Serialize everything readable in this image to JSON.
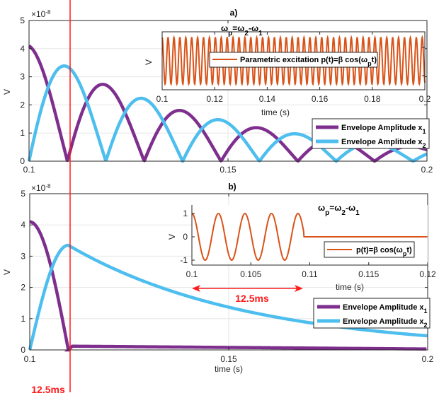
{
  "chart_data": [
    {
      "id": "a",
      "type": "line",
      "title": "a)",
      "xlabel": "",
      "ylabel": "V",
      "exponent_label": "×10",
      "exponent": "-8",
      "xlim": [
        0.1,
        0.2
      ],
      "ylim": [
        0,
        5
      ],
      "xticks": [
        "0.1",
        "0.15",
        "0.2"
      ],
      "xtick_values": [
        0.1,
        0.15,
        0.2
      ],
      "yticks": [
        "0",
        "1",
        "2",
        "3",
        "4",
        "5"
      ],
      "ytick_values": [
        0,
        1,
        2,
        3,
        4,
        5
      ],
      "grid": true,
      "legend_placement": "lower-right",
      "colors": {
        "x1": "#7E2F8E",
        "x2": "#4DBEEE",
        "marker": "#ff1a1a"
      },
      "series": [
        {
          "name": "Envelope Amplitude x",
          "sub": "1",
          "model": "beating",
          "amplitude": 4.1,
          "decay_tau_s": 0.0465,
          "zero_spacing_s": 0.0193,
          "phase": "cos",
          "peaks": [
            [
              0.1,
              4.1
            ],
            [
              0.1193,
              2.7
            ],
            [
              0.1386,
              1.78
            ],
            [
              0.158,
              1.17
            ],
            [
              0.177,
              0.77
            ],
            [
              0.196,
              0.51
            ]
          ]
        },
        {
          "name": "Envelope Amplitude x",
          "sub": "2",
          "model": "beating",
          "amplitude": 4.13,
          "decay_tau_s": 0.0465,
          "zero_spacing_s": 0.0193,
          "phase": "sin",
          "peaks": [
            [
              0.1097,
              3.35
            ],
            [
              0.129,
              2.2
            ],
            [
              0.148,
              1.44
            ],
            [
              0.167,
              0.95
            ],
            [
              0.186,
              0.63
            ]
          ]
        }
      ],
      "annotations": [
        {
          "text": "12.5ms marker",
          "x": 0.1097
        }
      ]
    },
    {
      "id": "a-inset",
      "type": "line",
      "title_parts": [
        [
          "ω",
          ""
        ],
        [
          "p",
          "sub"
        ],
        [
          "=ω",
          ""
        ],
        [
          "2",
          "sub"
        ],
        [
          "-ω",
          ""
        ],
        [
          "1",
          "sub"
        ]
      ],
      "xlabel": "time (s)",
      "ylabel": "V",
      "xlim": [
        0.1,
        0.2
      ],
      "ylim": [
        -1.2,
        1.2
      ],
      "xticks": [
        "0.1",
        "0.12",
        "0.14",
        "0.16",
        "0.18",
        "0.2"
      ],
      "xtick_values": [
        0.1,
        0.12,
        0.14,
        0.16,
        0.18,
        0.2
      ],
      "color": "#D95319",
      "series": [
        {
          "name_parts": [
            [
              "Parametric excitation p(t)=",
              ""
            ],
            [
              "β",
              ""
            ],
            [
              " cos(ω",
              ""
            ],
            [
              "p",
              "sub"
            ],
            [
              "t)",
              ""
            ]
          ],
          "amplitude": 1,
          "period_s": 0.00225,
          "end_s": 0.2
        }
      ]
    },
    {
      "id": "b",
      "type": "line",
      "title": "b)",
      "xlabel": "time (s)",
      "ylabel": "V",
      "exponent_label": "×10",
      "exponent": "-8",
      "xlim": [
        0.1,
        0.2
      ],
      "ylim": [
        0,
        5
      ],
      "xticks": [
        "0.1",
        "0.15",
        "0.2"
      ],
      "xtick_values": [
        0.1,
        0.15,
        0.2
      ],
      "yticks": [
        "0",
        "1",
        "2",
        "3",
        "4",
        "5"
      ],
      "ytick_values": [
        0,
        1,
        2,
        3,
        4,
        5
      ],
      "grid": true,
      "legend_placement": "lower-right",
      "series": [
        {
          "name": "Envelope Amplitude x",
          "sub": "1",
          "switch_s": 0.1097,
          "amplitude": 4.1,
          "after": [
            [
              0.1097,
              0.12
            ],
            [
              0.2,
              0.03
            ]
          ]
        },
        {
          "name": "Envelope Amplitude x",
          "sub": "2",
          "switch_s": 0.1097,
          "peak": 3.35,
          "decay_tau_s": 0.045,
          "end_value": 0.45
        }
      ],
      "marker_label": "12.5ms"
    },
    {
      "id": "b-inset",
      "type": "line",
      "title_parts": [
        [
          "ω",
          ""
        ],
        [
          "p",
          "sub"
        ],
        [
          "=ω",
          ""
        ],
        [
          "2",
          "sub"
        ],
        [
          "-ω",
          ""
        ],
        [
          "1",
          "sub"
        ]
      ],
      "xlabel": "time (s)",
      "ylabel": "V",
      "xlim": [
        0.1,
        0.12
      ],
      "ylim": [
        -1.2,
        1.2
      ],
      "xticks": [
        "0.1",
        "0.105",
        "0.11",
        "0.115",
        "0.12"
      ],
      "xtick_values": [
        0.1,
        0.105,
        0.11,
        0.115,
        0.12
      ],
      "yticks": [
        "-1",
        "0",
        "1"
      ],
      "ytick_values": [
        -1,
        0,
        1
      ],
      "series": [
        {
          "name_parts": [
            [
              "p(t)=",
              ""
            ],
            [
              "β",
              ""
            ],
            [
              " cos(ω",
              ""
            ],
            [
              "p",
              "sub"
            ],
            [
              "t)",
              ""
            ]
          ],
          "amplitude": 1,
          "period_s": 0.00225,
          "end_s": 0.1095
        }
      ],
      "span_label": "12.5ms"
    }
  ]
}
